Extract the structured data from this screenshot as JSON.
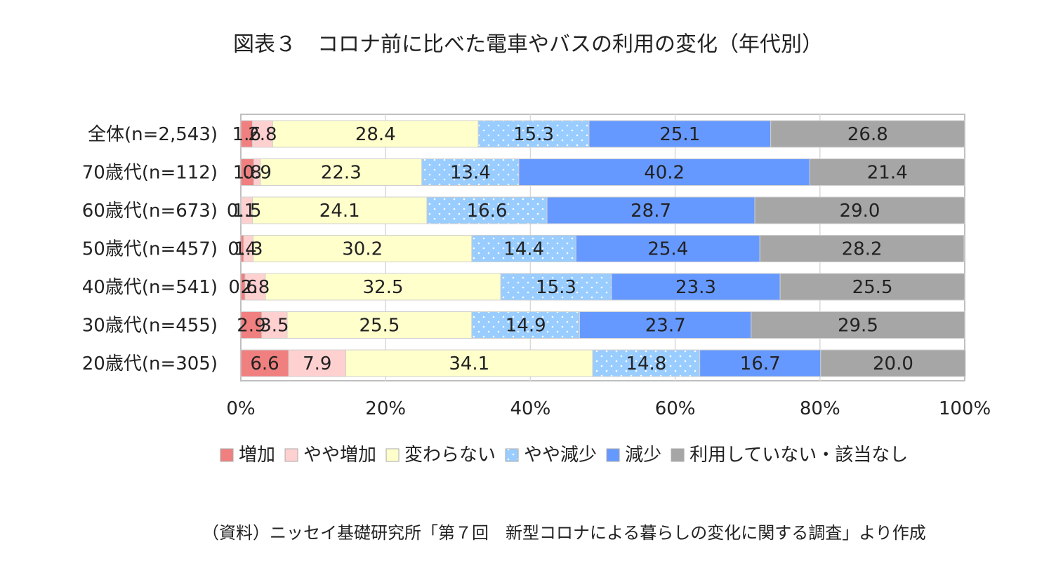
{
  "title": "図表３　コロナ前に比べた電車やバスの利用の変化（年代別）",
  "source": "（資料）ニッセイ基礎研究所「第７回　新型コロナによる暮らしの変化に関する調査」より作成",
  "chart_data": {
    "type": "bar",
    "orientation": "horizontal",
    "stacked": "percent",
    "categories": [
      "全体(n=2,543)",
      "70歳代(n=112)",
      "60歳代(n=673)",
      "50歳代(n=457)",
      "40歳代(n=541)",
      "30歳代(n=455)",
      "20歳代(n=305)"
    ],
    "series": [
      {
        "name": "増加",
        "color": "#f08080",
        "pattern": "solid",
        "values": [
          1.6,
          1.8,
          0.1,
          0.4,
          0.6,
          2.9,
          6.6
        ]
      },
      {
        "name": "やや増加",
        "color": "#ffd0d0",
        "pattern": "solid",
        "values": [
          2.8,
          0.9,
          1.5,
          1.3,
          2.8,
          3.5,
          7.9
        ]
      },
      {
        "name": "変わらない",
        "color": "#ffffcc",
        "pattern": "solid",
        "values": [
          28.4,
          22.3,
          24.1,
          30.2,
          32.5,
          25.5,
          34.1
        ]
      },
      {
        "name": "やや減少",
        "color": "#99ccff",
        "pattern": "dotted",
        "values": [
          15.3,
          13.4,
          16.6,
          14.4,
          15.3,
          14.9,
          14.8
        ]
      },
      {
        "name": "減少",
        "color": "#6699ff",
        "pattern": "solid",
        "values": [
          25.1,
          40.2,
          28.7,
          25.4,
          23.3,
          23.7,
          16.7
        ]
      },
      {
        "name": "利用していない・該当なし",
        "color": "#a6a6a6",
        "pattern": "solid",
        "values": [
          26.8,
          21.4,
          29.0,
          28.2,
          25.5,
          29.5,
          20.0
        ]
      }
    ],
    "xlim": [
      0,
      100
    ],
    "x_ticks": [
      "0%",
      "20%",
      "40%",
      "60%",
      "80%",
      "100%"
    ],
    "grid": true,
    "legend_position": "bottom"
  }
}
